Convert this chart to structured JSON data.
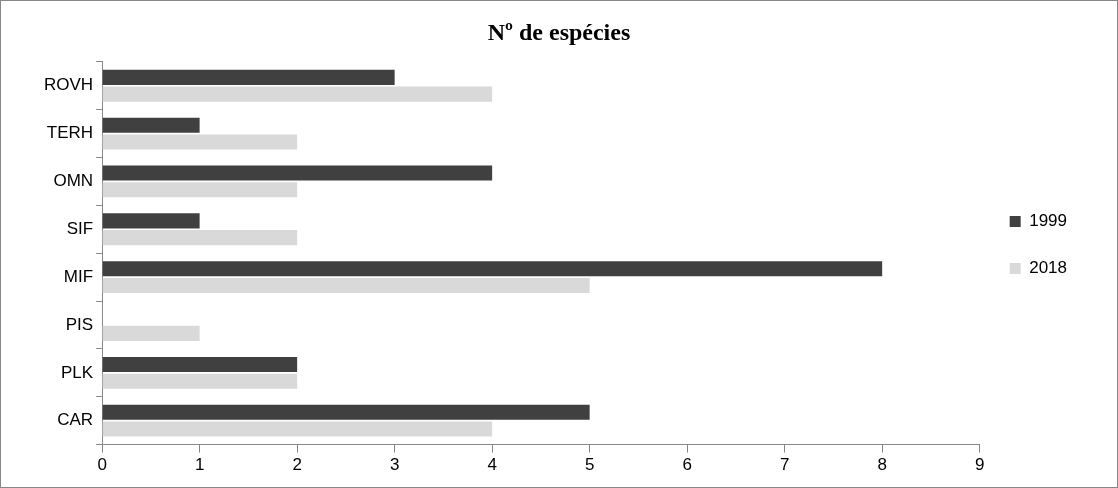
{
  "chart_data": {
    "type": "bar",
    "orientation": "horizontal",
    "title": "Nº de espécies",
    "categories": [
      "ROVH",
      "TERH",
      "OMN",
      "SIF",
      "MIF",
      "PIS",
      "PLK",
      "CAR"
    ],
    "series": [
      {
        "name": "1999",
        "color": "#404040",
        "values": [
          3,
          1,
          4,
          1,
          8,
          0,
          2,
          5
        ]
      },
      {
        "name": "2018",
        "color": "#d9d9d9",
        "values": [
          4,
          2,
          2,
          2,
          5,
          1,
          2,
          4
        ]
      }
    ],
    "xlim": [
      0,
      9
    ],
    "xticks": [
      0,
      1,
      2,
      3,
      4,
      5,
      6,
      7,
      8,
      9
    ],
    "grid": false,
    "legend": "right"
  }
}
